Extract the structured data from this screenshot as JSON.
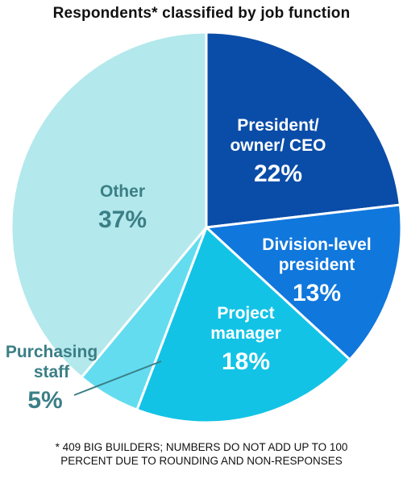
{
  "chart_data": {
    "type": "pie",
    "title": "Respondents* classified by job function",
    "slices": [
      {
        "label": "President/ owner/ CEO",
        "label_lines": [
          "President/",
          "owner/ CEO"
        ],
        "value": 22,
        "value_label": "22%",
        "color": "#0a4da8",
        "text_color": "#ffffff"
      },
      {
        "label": "Division-level president",
        "label_lines": [
          "Division-level",
          "president"
        ],
        "value": 13,
        "value_label": "13%",
        "color": "#1077dd",
        "text_color": "#ffffff"
      },
      {
        "label": "Project manager",
        "label_lines": [
          "Project",
          "manager"
        ],
        "value": 18,
        "value_label": "18%",
        "color": "#12c3e6",
        "text_color": "#ffffff"
      },
      {
        "label": "Purchasing staff",
        "label_lines": [
          "Purchasing",
          "staff"
        ],
        "value": 5,
        "value_label": "5%",
        "color": "#63dcf0",
        "text_color": "#3b7f86"
      },
      {
        "label": "Other",
        "label_lines": [
          "Other"
        ],
        "value": 37,
        "value_label": "37%",
        "color": "#b3e8ec",
        "text_color": "#3b7f86"
      }
    ],
    "footnote_lines": [
      "* 409 BIG BUILDERS; NUMBERS DO NOT ADD UP TO 100",
      "PERCENT DUE TO ROUNDING AND NON-RESPONSES"
    ]
  }
}
